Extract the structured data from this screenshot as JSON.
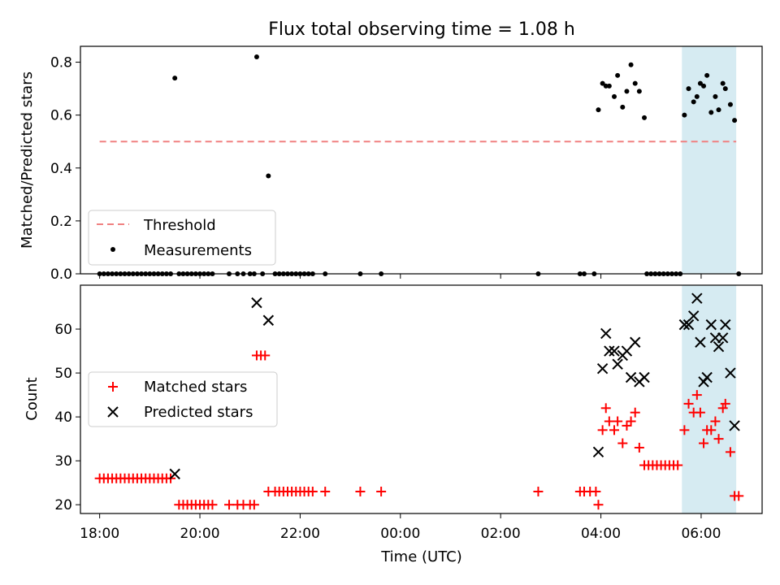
{
  "title": "Flux total observing time = 1.08 h",
  "xlabel": "Time (UTC)",
  "x_tick_labels": [
    "18:00",
    "20:00",
    "22:00",
    "00:00",
    "02:00",
    "04:00",
    "06:00"
  ],
  "colors": {
    "threshold": "#f08080",
    "measurements": "#000000",
    "matched": "#ff0000",
    "predicted": "#000000",
    "span": "#add8e6"
  },
  "chart_data": [
    {
      "type": "scatter",
      "ylabel": "Matched/Predicted stars",
      "ylim": [
        0,
        0.86
      ],
      "yticks": [
        0.0,
        0.2,
        0.4,
        0.6,
        0.8
      ],
      "ytick_labels": [
        "0.0",
        "0.2",
        "0.4",
        "0.6",
        "0.8"
      ],
      "xlim": [
        "17:37",
        "07:13"
      ],
      "legend": {
        "location": "lower left",
        "entries": [
          "Threshold",
          "Measurements"
        ]
      },
      "highlight_span": {
        "x_start": "05:37",
        "x_end": "06:42"
      },
      "threshold": {
        "name": "Threshold",
        "y": 0.5,
        "x_start": "18:00",
        "x_end": "06:42"
      },
      "series": [
        {
          "name": "Measurements",
          "points": [
            [
              "18:00",
              0
            ],
            [
              "18:05",
              0
            ],
            [
              "18:10",
              0
            ],
            [
              "18:15",
              0
            ],
            [
              "18:20",
              0
            ],
            [
              "18:25",
              0
            ],
            [
              "18:30",
              0
            ],
            [
              "18:35",
              0
            ],
            [
              "18:40",
              0
            ],
            [
              "18:45",
              0
            ],
            [
              "18:50",
              0
            ],
            [
              "18:55",
              0
            ],
            [
              "19:00",
              0
            ],
            [
              "19:05",
              0
            ],
            [
              "19:10",
              0
            ],
            [
              "19:15",
              0
            ],
            [
              "19:20",
              0
            ],
            [
              "19:25",
              0
            ],
            [
              "19:30",
              0.74
            ],
            [
              "19:35",
              0
            ],
            [
              "19:40",
              0
            ],
            [
              "19:45",
              0
            ],
            [
              "19:50",
              0
            ],
            [
              "19:55",
              0
            ],
            [
              "20:00",
              0
            ],
            [
              "20:05",
              0
            ],
            [
              "20:10",
              0
            ],
            [
              "20:15",
              0
            ],
            [
              "20:35",
              0
            ],
            [
              "20:45",
              0
            ],
            [
              "20:52",
              0
            ],
            [
              "21:00",
              0
            ],
            [
              "21:05",
              0
            ],
            [
              "21:08",
              0.82
            ],
            [
              "21:15",
              0
            ],
            [
              "21:22",
              0.37
            ],
            [
              "21:30",
              0
            ],
            [
              "21:35",
              0
            ],
            [
              "21:40",
              0
            ],
            [
              "21:45",
              0
            ],
            [
              "21:50",
              0
            ],
            [
              "21:55",
              0
            ],
            [
              "22:00",
              0
            ],
            [
              "22:05",
              0
            ],
            [
              "22:10",
              0
            ],
            [
              "22:15",
              0
            ],
            [
              "22:30",
              0
            ],
            [
              "23:12",
              0
            ],
            [
              "23:37",
              0
            ],
            [
              "02:45",
              0
            ],
            [
              "03:35",
              0
            ],
            [
              "03:40",
              0
            ],
            [
              "03:52",
              0
            ],
            [
              "03:57",
              0.62
            ],
            [
              "04:02",
              0.72
            ],
            [
              "04:06",
              0.71
            ],
            [
              "04:10",
              0.71
            ],
            [
              "04:16",
              0.67
            ],
            [
              "04:20",
              0.75
            ],
            [
              "04:26",
              0.63
            ],
            [
              "04:31",
              0.69
            ],
            [
              "04:36",
              0.79
            ],
            [
              "04:41",
              0.72
            ],
            [
              "04:46",
              0.69
            ],
            [
              "04:52",
              0.59
            ],
            [
              "04:55",
              0
            ],
            [
              "05:00",
              0
            ],
            [
              "05:05",
              0
            ],
            [
              "05:10",
              0
            ],
            [
              "05:15",
              0
            ],
            [
              "05:20",
              0
            ],
            [
              "05:25",
              0
            ],
            [
              "05:30",
              0
            ],
            [
              "05:35",
              0
            ],
            [
              "05:40",
              0.6
            ],
            [
              "05:45",
              0.7
            ],
            [
              "05:51",
              0.65
            ],
            [
              "05:55",
              0.67
            ],
            [
              "05:59",
              0.72
            ],
            [
              "06:03",
              0.71
            ],
            [
              "06:07",
              0.75
            ],
            [
              "06:12",
              0.61
            ],
            [
              "06:17",
              0.67
            ],
            [
              "06:21",
              0.62
            ],
            [
              "06:26",
              0.72
            ],
            [
              "06:29",
              0.7
            ],
            [
              "06:35",
              0.64
            ],
            [
              "06:40",
              0.58
            ],
            [
              "06:45",
              0
            ]
          ]
        }
      ]
    },
    {
      "type": "scatter",
      "ylabel": "Count",
      "ylim": [
        18,
        70
      ],
      "yticks": [
        20,
        30,
        40,
        50,
        60
      ],
      "ytick_labels": [
        "20",
        "30",
        "40",
        "50",
        "60"
      ],
      "xlim": [
        "17:37",
        "07:13"
      ],
      "legend": {
        "location": "center left",
        "entries": [
          "Matched stars",
          "Predicted stars"
        ]
      },
      "highlight_span": {
        "x_start": "05:37",
        "x_end": "06:42"
      },
      "series": [
        {
          "name": "Matched stars",
          "marker": "plus",
          "points": [
            [
              "18:00",
              26
            ],
            [
              "18:05",
              26
            ],
            [
              "18:10",
              26
            ],
            [
              "18:15",
              26
            ],
            [
              "18:20",
              26
            ],
            [
              "18:25",
              26
            ],
            [
              "18:30",
              26
            ],
            [
              "18:35",
              26
            ],
            [
              "18:40",
              26
            ],
            [
              "18:45",
              26
            ],
            [
              "18:50",
              26
            ],
            [
              "18:55",
              26
            ],
            [
              "19:00",
              26
            ],
            [
              "19:05",
              26
            ],
            [
              "19:10",
              26
            ],
            [
              "19:15",
              26
            ],
            [
              "19:20",
              26
            ],
            [
              "19:25",
              26
            ],
            [
              "19:35",
              20
            ],
            [
              "19:40",
              20
            ],
            [
              "19:45",
              20
            ],
            [
              "19:50",
              20
            ],
            [
              "19:55",
              20
            ],
            [
              "20:00",
              20
            ],
            [
              "20:05",
              20
            ],
            [
              "20:10",
              20
            ],
            [
              "20:15",
              20
            ],
            [
              "20:35",
              20
            ],
            [
              "20:45",
              20
            ],
            [
              "20:52",
              20
            ],
            [
              "21:00",
              20
            ],
            [
              "21:05",
              20
            ],
            [
              "21:08",
              54
            ],
            [
              "21:13",
              54
            ],
            [
              "21:18",
              54
            ],
            [
              "21:22",
              23
            ],
            [
              "21:30",
              23
            ],
            [
              "21:35",
              23
            ],
            [
              "21:40",
              23
            ],
            [
              "21:45",
              23
            ],
            [
              "21:50",
              23
            ],
            [
              "21:55",
              23
            ],
            [
              "22:00",
              23
            ],
            [
              "22:05",
              23
            ],
            [
              "22:10",
              23
            ],
            [
              "22:15",
              23
            ],
            [
              "22:30",
              23
            ],
            [
              "23:12",
              23
            ],
            [
              "23:37",
              23
            ],
            [
              "02:45",
              23
            ],
            [
              "03:35",
              23
            ],
            [
              "03:40",
              23
            ],
            [
              "03:47",
              23
            ],
            [
              "03:54",
              23
            ],
            [
              "03:57",
              20
            ],
            [
              "04:02",
              37
            ],
            [
              "04:06",
              42
            ],
            [
              "04:10",
              39
            ],
            [
              "04:16",
              37
            ],
            [
              "04:20",
              39
            ],
            [
              "04:26",
              34
            ],
            [
              "04:31",
              38
            ],
            [
              "04:36",
              39
            ],
            [
              "04:41",
              41
            ],
            [
              "04:46",
              33
            ],
            [
              "04:52",
              29
            ],
            [
              "04:57",
              29
            ],
            [
              "05:02",
              29
            ],
            [
              "05:07",
              29
            ],
            [
              "05:12",
              29
            ],
            [
              "05:17",
              29
            ],
            [
              "05:22",
              29
            ],
            [
              "05:27",
              29
            ],
            [
              "05:32",
              29
            ],
            [
              "05:40",
              37
            ],
            [
              "05:45",
              43
            ],
            [
              "05:51",
              41
            ],
            [
              "05:55",
              45
            ],
            [
              "05:59",
              41
            ],
            [
              "06:03",
              34
            ],
            [
              "06:07",
              37
            ],
            [
              "06:12",
              37
            ],
            [
              "06:17",
              39
            ],
            [
              "06:21",
              35
            ],
            [
              "06:26",
              42
            ],
            [
              "06:29",
              43
            ],
            [
              "06:35",
              32
            ],
            [
              "06:40",
              22
            ],
            [
              "06:45",
              22
            ]
          ]
        },
        {
          "name": "Predicted stars",
          "marker": "x",
          "points": [
            [
              "19:30",
              27
            ],
            [
              "21:08",
              66
            ],
            [
              "21:22",
              62
            ],
            [
              "03:57",
              32
            ],
            [
              "04:02",
              51
            ],
            [
              "04:06",
              59
            ],
            [
              "04:10",
              55
            ],
            [
              "04:16",
              55
            ],
            [
              "04:20",
              52
            ],
            [
              "04:26",
              54
            ],
            [
              "04:31",
              55
            ],
            [
              "04:36",
              49
            ],
            [
              "04:41",
              57
            ],
            [
              "04:46",
              48
            ],
            [
              "04:52",
              49
            ],
            [
              "05:40",
              61
            ],
            [
              "05:45",
              61
            ],
            [
              "05:51",
              63
            ],
            [
              "05:55",
              67
            ],
            [
              "05:59",
              57
            ],
            [
              "06:03",
              48
            ],
            [
              "06:07",
              49
            ],
            [
              "06:12",
              61
            ],
            [
              "06:17",
              58
            ],
            [
              "06:21",
              56
            ],
            [
              "06:26",
              58
            ],
            [
              "06:29",
              61
            ],
            [
              "06:35",
              50
            ],
            [
              "06:40",
              38
            ]
          ]
        }
      ]
    }
  ]
}
